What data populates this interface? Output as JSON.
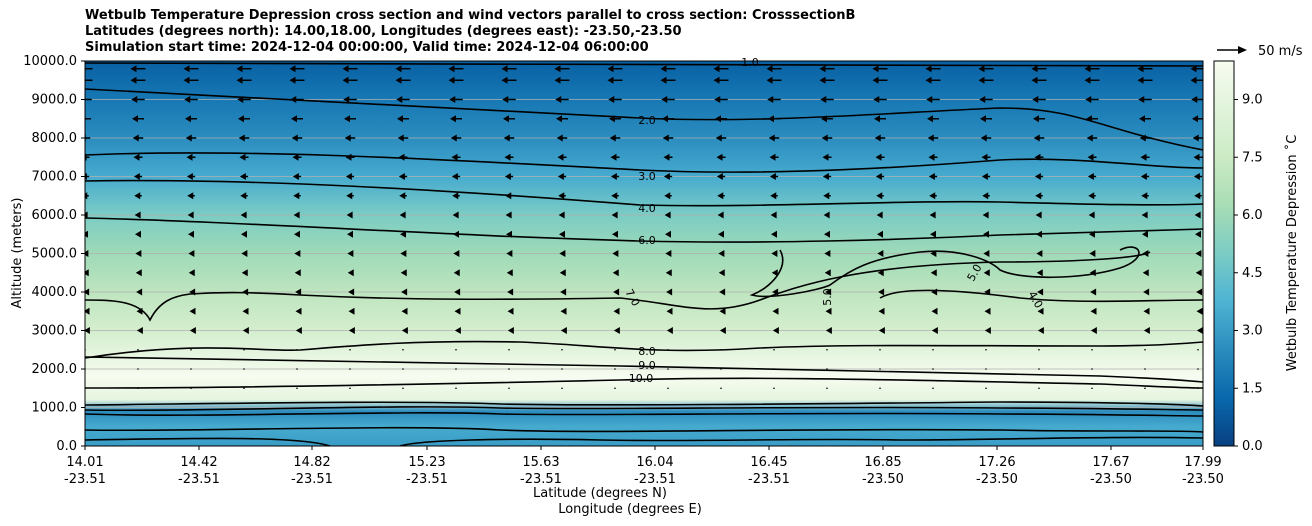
{
  "chart_data": {
    "type": "heatmap",
    "title_lines": [
      "Wetbulb Temperature Depression cross section and wind vectors parallel to cross section: CrosssectionB",
      "Latitudes (degrees north): 14.00,18.00, Longitudes (degrees east): -23.50,-23.50",
      "Simulation start time: 2024-12-04 00:00:00, Valid time: 2024-12-04 06:00:00"
    ],
    "xlabel_lines": [
      "Latitude (degrees N)",
      "Longitude (degrees E)"
    ],
    "ylabel": "Altitude (meters)",
    "ylim": [
      0,
      10000
    ],
    "y_ticks": [
      "0.0",
      "1000.0",
      "2000.0",
      "3000.0",
      "4000.0",
      "5000.0",
      "6000.0",
      "7000.0",
      "8000.0",
      "9000.0",
      "10000.0"
    ],
    "x_ticks": [
      {
        "lat": "14.01",
        "lon": "-23.51"
      },
      {
        "lat": "14.42",
        "lon": "-23.51"
      },
      {
        "lat": "14.82",
        "lon": "-23.51"
      },
      {
        "lat": "15.23",
        "lon": "-23.51"
      },
      {
        "lat": "15.63",
        "lon": "-23.51"
      },
      {
        "lat": "16.04",
        "lon": "-23.51"
      },
      {
        "lat": "16.45",
        "lon": "-23.51"
      },
      {
        "lat": "16.85",
        "lon": "-23.50"
      },
      {
        "lat": "17.26",
        "lon": "-23.50"
      },
      {
        "lat": "17.67",
        "lon": "-23.50"
      },
      {
        "lat": "17.99",
        "lon": "-23.50"
      }
    ],
    "colorbar": {
      "label": "Wetbulb Temperature Depression ˚C",
      "range": [
        0,
        10
      ],
      "ticks": [
        "0.0",
        "1.5",
        "3.0",
        "4.5",
        "6.0",
        "7.5",
        "9.0"
      ],
      "colors": [
        "#084081",
        "#0868ac",
        "#2b8cbe",
        "#4eb3d3",
        "#7bccc4",
        "#a8ddb5",
        "#ccebc5",
        "#e0f3db",
        "#f7fcf0"
      ]
    },
    "profile": [
      {
        "altitude": 0,
        "value": 3.0
      },
      {
        "altitude": 500,
        "value": 3.5
      },
      {
        "altitude": 900,
        "value": 2.5
      },
      {
        "altitude": 1200,
        "value": 9.0
      },
      {
        "altitude": 1800,
        "value": 10.0
      },
      {
        "altitude": 2400,
        "value": 9.0
      },
      {
        "altitude": 3000,
        "value": 8.0
      },
      {
        "altitude": 4000,
        "value": 7.0
      },
      {
        "altitude": 5000,
        "value": 6.0
      },
      {
        "altitude": 6000,
        "value": 5.0
      },
      {
        "altitude": 7000,
        "value": 3.5
      },
      {
        "altitude": 8000,
        "value": 2.5
      },
      {
        "altitude": 9000,
        "value": 1.8
      },
      {
        "altitude": 10000,
        "value": 1.0
      }
    ],
    "contour_labels": [
      "1.0",
      "2.0",
      "3.0",
      "4.0",
      "6.0",
      "7.0",
      "8.0",
      "9.0",
      "10.0",
      "5.0",
      "4.0",
      "5.0"
    ],
    "wind_reference": "50 m/s",
    "wind_levels": [
      {
        "altitude": 9800,
        "speed": -20
      },
      {
        "altitude": 9500,
        "speed": -20
      },
      {
        "altitude": 9000,
        "speed": -18
      },
      {
        "altitude": 8500,
        "speed": -16
      },
      {
        "altitude": 8000,
        "speed": -14
      },
      {
        "altitude": 7500,
        "speed": -12
      },
      {
        "altitude": 7000,
        "speed": -11
      },
      {
        "altitude": 6500,
        "speed": -10
      },
      {
        "altitude": 6000,
        "speed": -9
      },
      {
        "altitude": 5500,
        "speed": -8
      },
      {
        "altitude": 5000,
        "speed": -7
      },
      {
        "altitude": 4500,
        "speed": -6
      },
      {
        "altitude": 4000,
        "speed": -5
      },
      {
        "altitude": 3500,
        "speed": -4
      },
      {
        "altitude": 3000,
        "speed": -3
      },
      {
        "altitude": 2500,
        "speed": -1
      },
      {
        "altitude": 2000,
        "speed": 0
      },
      {
        "altitude": 1500,
        "speed": 0
      }
    ]
  }
}
